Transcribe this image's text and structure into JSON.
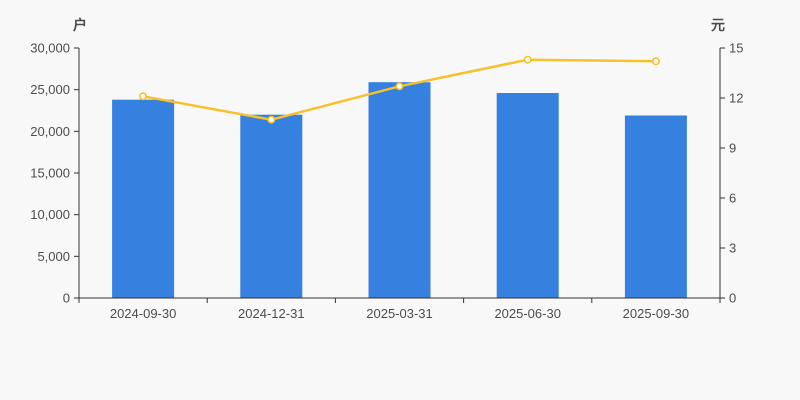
{
  "page": {
    "background": "#f8f8f8",
    "text_color": "#4d4d4d",
    "axis_color": "#333333"
  },
  "chart_data": {
    "type": "bar",
    "subtype": "bar-with-line-overlay",
    "title": "",
    "grid": false,
    "legend_position": "none",
    "categories": [
      "2024-09-30",
      "2024-12-31",
      "2025-03-31",
      "2025-06-30",
      "2025-09-30"
    ],
    "series": [
      {
        "name": "holders-bar",
        "type": "bar",
        "axis": "left",
        "unit": "户",
        "color": "#3680e0",
        "values": [
          23800,
          22000,
          25900,
          24600,
          21900
        ]
      },
      {
        "name": "price-line",
        "type": "line",
        "axis": "right",
        "unit": "元",
        "color": "#f8c12b",
        "marker_fill": "#ffffff",
        "values": [
          12.1,
          10.7,
          12.7,
          14.3,
          14.2
        ]
      }
    ],
    "left_axis": {
      "unit": "户",
      "range": [
        0,
        30000
      ],
      "tick_labels": [
        "0",
        "5,000",
        "10,000",
        "15,000",
        "20,000",
        "25,000",
        "30,000"
      ]
    },
    "right_axis": {
      "unit": "元",
      "range": [
        0,
        15
      ],
      "tick_labels": [
        "0",
        "3",
        "6",
        "9",
        "12",
        "15"
      ]
    }
  }
}
